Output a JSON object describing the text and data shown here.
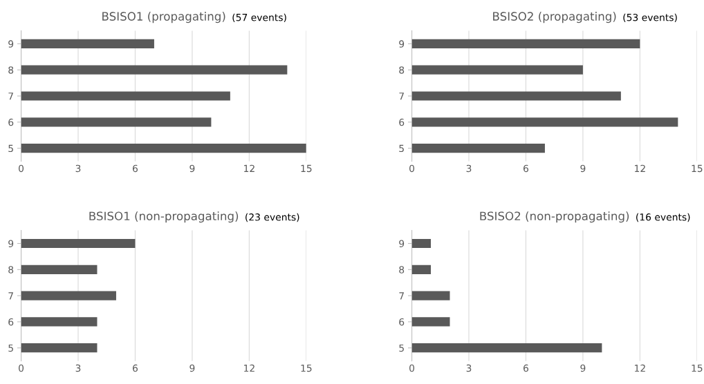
{
  "chart_data": [
    {
      "type": "bar",
      "orientation": "horizontal",
      "title": "BSISO1 (propagating)",
      "subtitle": "(57 events)",
      "categories": [
        "9",
        "8",
        "7",
        "6",
        "5"
      ],
      "values": [
        7,
        14,
        11,
        10,
        15
      ],
      "color": "#595959",
      "xlim": [
        0,
        15
      ],
      "xticks": [
        0,
        3,
        6,
        9,
        12,
        15
      ],
      "grid": "x"
    },
    {
      "type": "bar",
      "orientation": "horizontal",
      "title": "BSISO2 (propagating)",
      "subtitle": "(53 events)",
      "categories": [
        "9",
        "8",
        "7",
        "6",
        "5"
      ],
      "values": [
        12,
        9,
        11,
        14,
        7
      ],
      "color": "#595959",
      "xlim": [
        0,
        15
      ],
      "xticks": [
        0,
        3,
        6,
        9,
        12,
        15
      ],
      "grid": "x"
    },
    {
      "type": "bar",
      "orientation": "horizontal",
      "title": "BSISO1 (non-propagating)",
      "subtitle": "(23 events)",
      "categories": [
        "9",
        "8",
        "7",
        "6",
        "5"
      ],
      "values": [
        6,
        4,
        5,
        4,
        4
      ],
      "color": "#595959",
      "xlim": [
        0,
        15
      ],
      "xticks": [
        0,
        3,
        6,
        9,
        12,
        15
      ],
      "grid": "x"
    },
    {
      "type": "bar",
      "orientation": "horizontal",
      "title": "BSISO2 (non-propagating)",
      "subtitle": "(16 events)",
      "categories": [
        "9",
        "8",
        "7",
        "6",
        "5"
      ],
      "values": [
        1,
        1,
        2,
        2,
        10
      ],
      "color": "#595959",
      "xlim": [
        0,
        15
      ],
      "xticks": [
        0,
        3,
        6,
        9,
        12,
        15
      ],
      "grid": "x"
    }
  ]
}
